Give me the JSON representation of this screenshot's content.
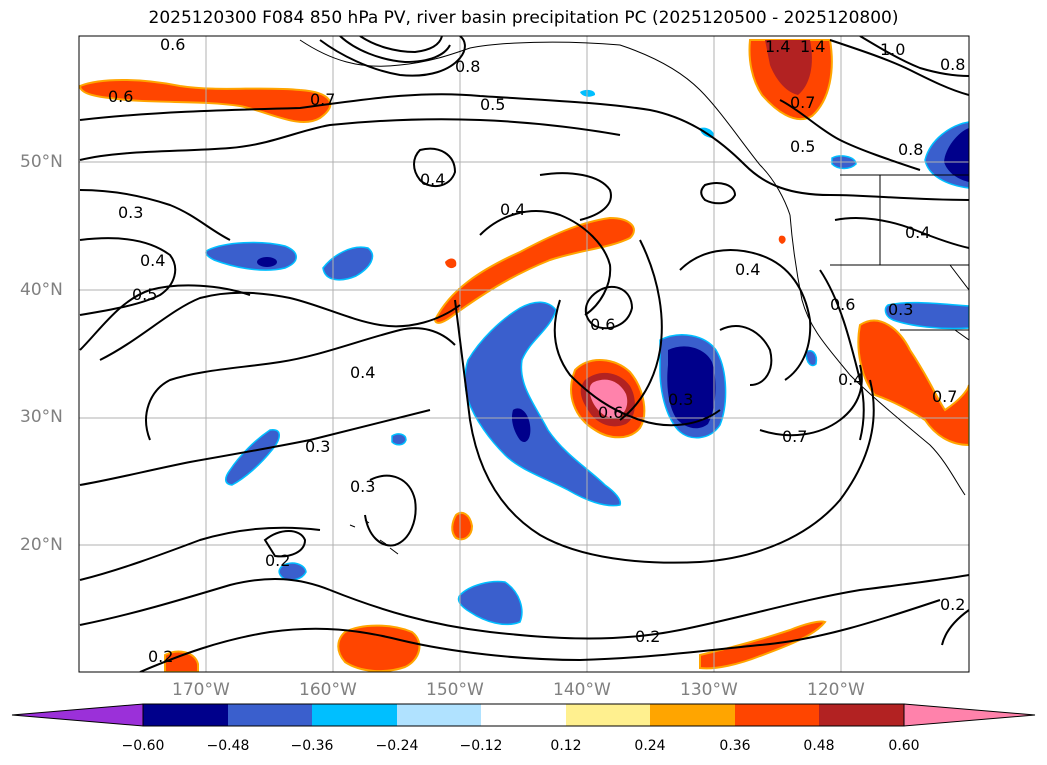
{
  "title": "2025120300 F084 850 hPa PV, river basin precipitation PC (2025120500 - 2025120800)",
  "lat_labels": [
    "50°N",
    "40°N",
    "30°N",
    "20°N"
  ],
  "lon_labels": [
    "170°W",
    "160°W",
    "150°W",
    "140°W",
    "130°W",
    "120°W"
  ],
  "contour_labels": [
    "0.6",
    "0.6",
    "0.7",
    "1.4",
    "0.8",
    "1.4",
    "1.0",
    "0.8",
    "0.5",
    "0.7",
    "0.5",
    "0.8",
    "0.4",
    "0.4",
    "0.3",
    "0.4",
    "0.5",
    "0.4",
    "0.6",
    "0.4",
    "0.6",
    "0.6",
    "0.3",
    "0.4",
    "0.3",
    "0.3",
    "0.4",
    "0.7",
    "0.7",
    "0.2",
    "0.2",
    "0.2",
    "0.3",
    "0.2"
  ],
  "colorbar": {
    "colors": [
      "#9b30d9",
      "#00008b",
      "#3a5fcd",
      "#00bfff",
      "#b0e2ff",
      "#ffffff",
      "#fff08f",
      "#ffa500",
      "#ff4500",
      "#b22222",
      "#ff82ab"
    ],
    "ticks": [
      "−0.60",
      "−0.48",
      "−0.36",
      "−0.24",
      "−0.12",
      "0.12",
      "0.24",
      "0.36",
      "0.48",
      "0.60"
    ]
  }
}
